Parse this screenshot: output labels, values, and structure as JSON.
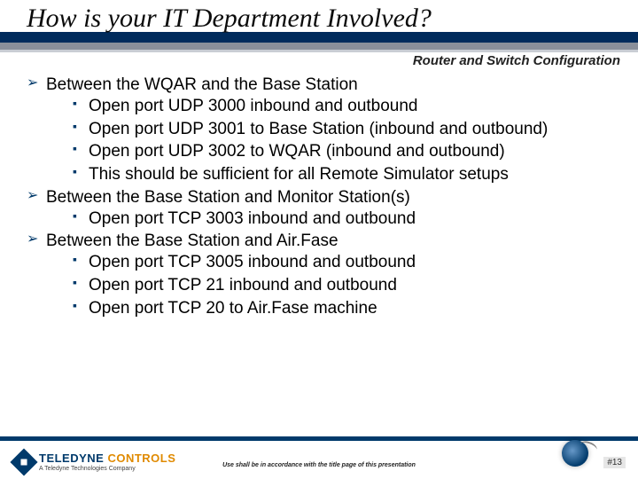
{
  "title": "How is your IT Department Involved?",
  "subtitle": "Router and Switch Configuration",
  "bullets": [
    {
      "text": "Between the WQAR and the Base Station",
      "sub": [
        "Open port UDP 3000 inbound and outbound",
        "Open port UDP 3001 to Base Station (inbound and outbound)",
        "Open port UDP 3002 to WQAR (inbound and outbound)",
        "This should be sufficient for all Remote Simulator setups"
      ]
    },
    {
      "text": "Between the Base Station and Monitor Station(s)",
      "sub": [
        "Open port TCP 3003 inbound and outbound"
      ]
    },
    {
      "text": "Between the Base Station and Air.Fase",
      "sub": [
        "Open port TCP 3005 inbound and outbound",
        "Open port TCP 21 inbound and outbound",
        "Open port TCP 20 to Air.Fase machine"
      ]
    }
  ],
  "logo": {
    "main1": "TELEDYNE ",
    "main2": "CONTROLS",
    "sub": "A Teledyne Technologies Company"
  },
  "disclaimer": "Use shall be in accordance with the title page of this presentation",
  "pagenum": "#13",
  "colors": {
    "brand_dark": "#003a6b",
    "brand_accent": "#e08a00"
  }
}
